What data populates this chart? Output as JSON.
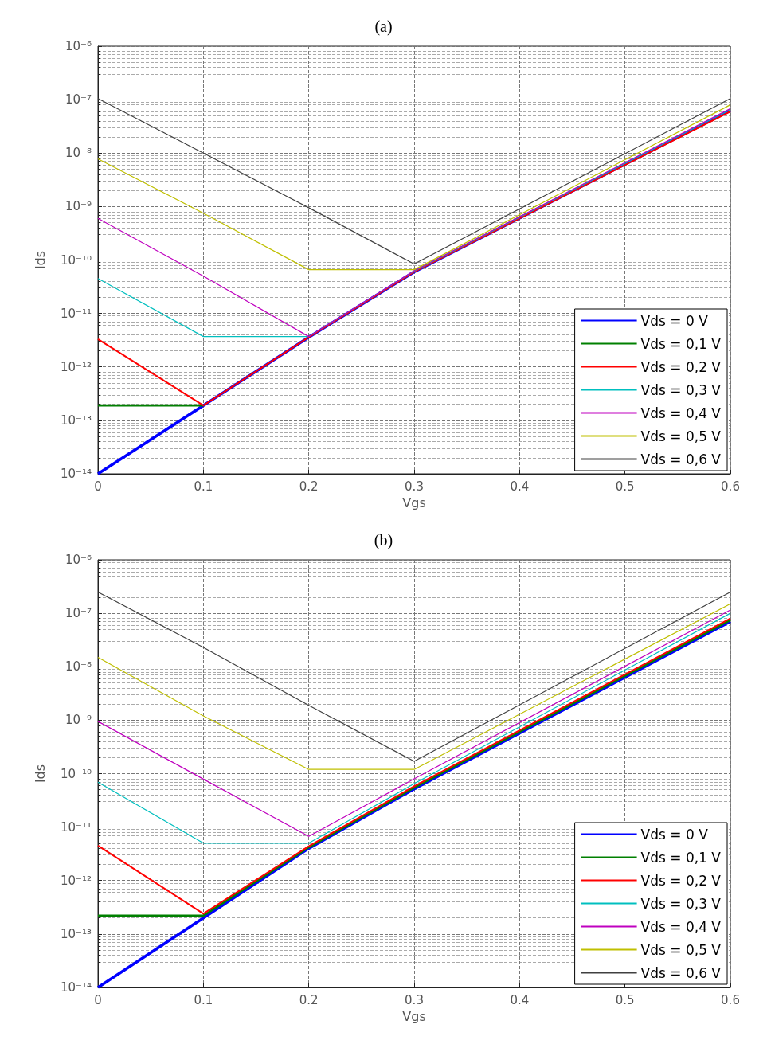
{
  "chart_data": [
    {
      "type": "line",
      "title": "(a)",
      "xlabel": "Vgs",
      "ylabel": "Ids",
      "log": "y",
      "grid": true,
      "legend": "bottom right",
      "marker": "none",
      "line_style": "solid",
      "xlim": [
        0,
        0.6
      ],
      "xticks": [
        0,
        0.1,
        0.2,
        0.3,
        0.4,
        0.5,
        0.6
      ],
      "ylim": [
        1e-14,
        1e-06
      ],
      "yticks": [
        {
          "value": 1e-14,
          "label": "10⁻¹⁴"
        },
        {
          "value": 1e-13,
          "label": "10⁻¹³"
        },
        {
          "value": 1e-12,
          "label": "10⁻¹²"
        },
        {
          "value": 1e-11,
          "label": "10⁻¹¹"
        },
        {
          "value": 1e-10,
          "label": "10⁻¹⁰"
        },
        {
          "value": 1e-09,
          "label": "10⁻⁹"
        },
        {
          "value": 1e-08,
          "label": "10⁻⁸"
        },
        {
          "value": 1e-07,
          "label": "10⁻⁷"
        },
        {
          "value": 1e-06,
          "label": "10⁻⁶"
        }
      ],
      "series": [
        {
          "name": "Vds = 0 V",
          "color": "#0000ff",
          "x": [
            0,
            0.1,
            0.2,
            0.3,
            0.6
          ],
          "values": [
            1e-14,
            1.9e-13,
            3.6e-12,
            6e-11,
            6.3e-08
          ]
        },
        {
          "name": "Vds = 0,1 V",
          "color": "#008000",
          "x": [
            0,
            0.1
          ],
          "values": [
            1.9e-13,
            1.9e-13
          ]
        },
        {
          "name": "Vds = 0,2 V",
          "color": "#ff0000",
          "x": [
            0,
            0.1,
            0.2,
            0.3,
            0.6
          ],
          "values": [
            3.3e-12,
            1.9e-13,
            3.6e-12,
            6e-11,
            6e-08
          ]
        },
        {
          "name": "Vds = 0,3 V",
          "color": "#00bfbf",
          "x": [
            0,
            0.1,
            0.2,
            0.3,
            0.6
          ],
          "values": [
            4.5e-11,
            3.7e-12,
            3.7e-12,
            6.2e-11,
            6.5e-08
          ]
        },
        {
          "name": "Vds = 0,4 V",
          "color": "#bf00bf",
          "x": [
            0,
            0.1,
            0.2,
            0.3,
            0.6
          ],
          "values": [
            6e-10,
            5e-11,
            3.7e-12,
            6.3e-11,
            6.8e-08
          ]
        },
        {
          "name": "Vds = 0,5 V",
          "color": "#bfbf00",
          "x": [
            0,
            0.1,
            0.2,
            0.3,
            0.6
          ],
          "values": [
            7.8e-09,
            7.5e-10,
            6.6e-11,
            6.6e-11,
            8e-08
          ]
        },
        {
          "name": "Vds = 0,6 V",
          "color": "#404040",
          "x": [
            0,
            0.1,
            0.2,
            0.3,
            0.6
          ],
          "values": [
            1.05e-07,
            1e-08,
            9.5e-10,
            8.4e-11,
            1.05e-07
          ]
        }
      ]
    },
    {
      "type": "line",
      "title": "(b)",
      "xlabel": "Vgs",
      "ylabel": "Ids",
      "log": "y",
      "grid": true,
      "legend": "bottom right",
      "marker": "none",
      "line_style": "solid",
      "xlim": [
        0,
        0.6
      ],
      "xticks": [
        0,
        0.1,
        0.2,
        0.3,
        0.4,
        0.5,
        0.6
      ],
      "ylim": [
        1e-14,
        1e-06
      ],
      "yticks": [
        {
          "value": 1e-14,
          "label": "10⁻¹⁴"
        },
        {
          "value": 1e-13,
          "label": "10⁻¹³"
        },
        {
          "value": 1e-12,
          "label": "10⁻¹²"
        },
        {
          "value": 1e-11,
          "label": "10⁻¹¹"
        },
        {
          "value": 1e-10,
          "label": "10⁻¹⁰"
        },
        {
          "value": 1e-09,
          "label": "10⁻⁹"
        },
        {
          "value": 1e-08,
          "label": "10⁻⁸"
        },
        {
          "value": 1e-07,
          "label": "10⁻⁷"
        },
        {
          "value": 1e-06,
          "label": "10⁻⁶"
        }
      ],
      "series": [
        {
          "name": "Vds = 0 V",
          "color": "#0000ff",
          "x": [
            0,
            0.1,
            0.2,
            0.3,
            0.6
          ],
          "values": [
            1e-14,
            2e-13,
            4e-12,
            5.2e-11,
            7e-08
          ]
        },
        {
          "name": "Vds = 0,1 V",
          "color": "#008000",
          "x": [
            0,
            0.1,
            0.2,
            0.3,
            0.6
          ],
          "values": [
            2.2e-13,
            2.2e-13,
            4.2e-12,
            5.5e-11,
            7.5e-08
          ]
        },
        {
          "name": "Vds = 0,2 V",
          "color": "#ff0000",
          "x": [
            0,
            0.1,
            0.2,
            0.3,
            0.6
          ],
          "values": [
            4.5e-12,
            2.4e-13,
            4.4e-12,
            5.8e-11,
            8e-08
          ]
        },
        {
          "name": "Vds = 0,3 V",
          "color": "#00bfbf",
          "x": [
            0,
            0.1,
            0.2,
            0.3,
            0.6
          ],
          "values": [
            6.9e-11,
            5e-12,
            5e-12,
            6.5e-11,
            1e-07
          ]
        },
        {
          "name": "Vds = 0,4 V",
          "color": "#bf00bf",
          "x": [
            0,
            0.1,
            0.2,
            0.3,
            0.6
          ],
          "values": [
            9.5e-10,
            7.9e-11,
            6.7e-12,
            8e-11,
            1.15e-07
          ]
        },
        {
          "name": "Vds = 0,5 V",
          "color": "#bfbf00",
          "x": [
            0,
            0.1,
            0.2,
            0.3,
            0.6
          ],
          "values": [
            1.5e-08,
            1.2e-09,
            1.2e-10,
            1.2e-10,
            1.5e-07
          ]
        },
        {
          "name": "Vds = 0,6 V",
          "color": "#404040",
          "x": [
            0,
            0.1,
            0.2,
            0.3,
            0.6
          ],
          "values": [
            2.5e-07,
            2.3e-08,
            1.9e-09,
            1.7e-10,
            2.5e-07
          ]
        }
      ]
    }
  ]
}
